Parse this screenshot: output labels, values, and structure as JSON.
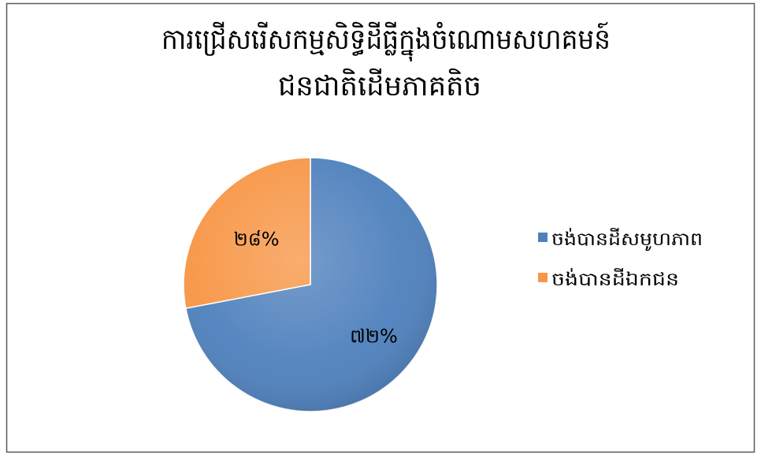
{
  "chart_data": {
    "type": "pie",
    "title_lines": [
      "ការជ្រើសរើសកម្មសិទ្ធិដីធ្លីក្នុងចំណោមសហគមន៍",
      "ជនជាតិដើមភាគតិច"
    ],
    "categories": [
      "ចង់បានដីសមូហភាព",
      "ចង់បានដីឯកជន"
    ],
    "values": [
      72,
      28
    ],
    "data_labels": [
      "៧២%",
      "២៨%"
    ],
    "colors": [
      "#4F81BD",
      "#F79646"
    ],
    "start": "top",
    "direction": "clockwise",
    "legend": "right"
  }
}
